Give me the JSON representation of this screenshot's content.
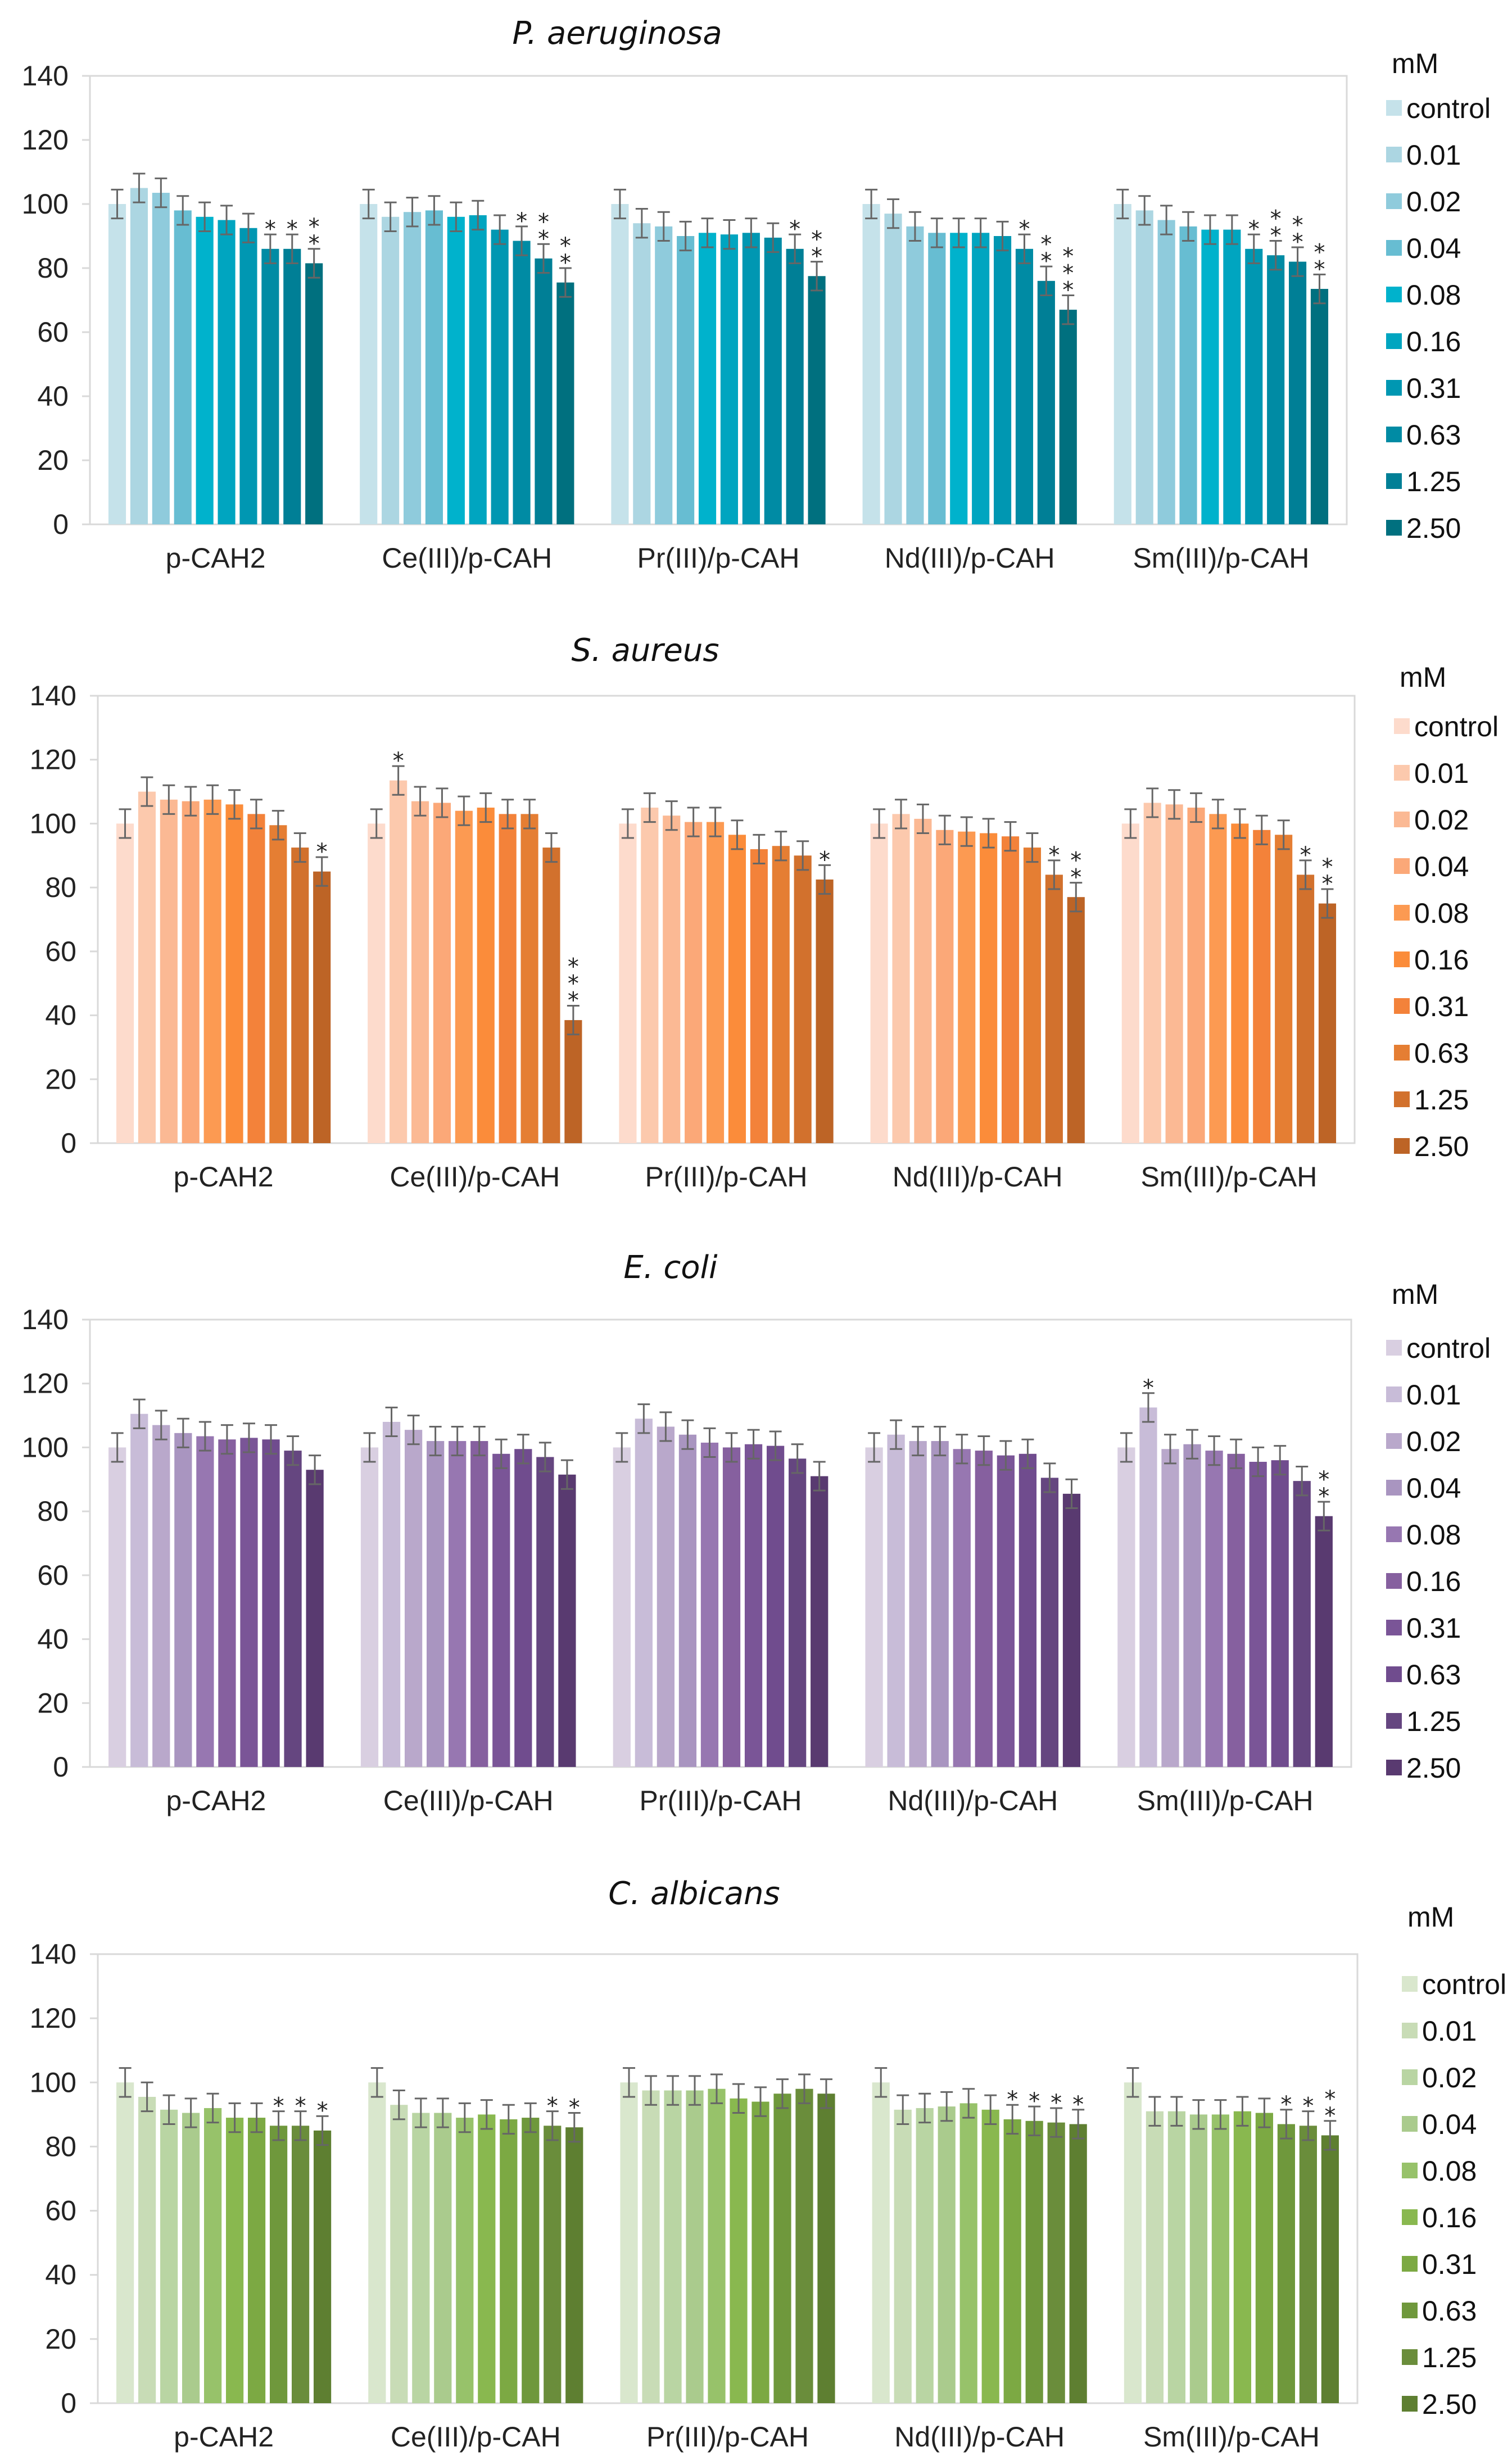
{
  "chart_data": [
    {
      "type": "bar",
      "title": "P. aeruginosa",
      "legend_title": "mM",
      "legend_position": "right",
      "ylim": [
        0,
        140
      ],
      "yticks": [
        0,
        20,
        40,
        60,
        80,
        100,
        120,
        140
      ],
      "ytick_labels": [
        "0",
        "20",
        "40",
        "60",
        "80",
        "100",
        "120",
        "140"
      ],
      "categories": [
        "p-CAH2",
        "Ce(III)/p-CAH",
        "Pr(III)/p-CAH",
        "Nd(III)/p-CAH",
        "Sm(III)/p-CAH"
      ],
      "series": [
        "control",
        "0.01",
        "0.02",
        "0.04",
        "0.08",
        "0.16",
        "0.31",
        "0.63",
        "1.25",
        "2.50"
      ],
      "colors": [
        "#c5e2ea",
        "#acd6e2",
        "#8fcbdc",
        "#67bdd2",
        "#00b2cc",
        "#00a5c0",
        "#0097b2",
        "#008ba4",
        "#007f96",
        "#00707f"
      ],
      "values": [
        [
          100,
          105,
          103.5,
          98,
          96,
          95,
          92.5,
          86,
          86,
          81.5
        ],
        [
          100,
          96,
          97.5,
          98,
          96,
          96.5,
          92,
          88.5,
          83,
          75.5
        ],
        [
          100,
          94,
          93,
          90,
          91,
          90.5,
          91,
          89.5,
          86,
          77.5
        ],
        [
          100,
          97,
          93,
          91,
          91,
          91,
          90,
          86,
          76,
          67
        ],
        [
          100,
          98,
          95,
          93,
          92,
          92,
          86,
          84,
          82,
          73.5
        ]
      ],
      "error": 4.5,
      "significance": [
        [
          "",
          "",
          "",
          "",
          "",
          "",
          "",
          "*",
          "*",
          "**"
        ],
        [
          "",
          "",
          "",
          "",
          "",
          "",
          "",
          "*",
          "**",
          "**"
        ],
        [
          "",
          "",
          "",
          "",
          "",
          "",
          "",
          "",
          "*",
          "**"
        ],
        [
          "",
          "",
          "",
          "",
          "",
          "",
          "",
          "*",
          "**",
          "***"
        ],
        [
          "",
          "",
          "",
          "",
          "",
          "",
          "*",
          "**",
          "**",
          "**"
        ]
      ]
    },
    {
      "type": "bar",
      "title": "S. aureus",
      "legend_title": "mM",
      "legend_position": "right",
      "ylim": [
        0,
        140
      ],
      "yticks": [
        0,
        20,
        40,
        60,
        80,
        100,
        120,
        140
      ],
      "ytick_labels": [
        "0",
        "20",
        "40",
        "60",
        "80",
        "100",
        "120",
        "140"
      ],
      "categories": [
        "p-CAH2",
        "Ce(III)/p-CAH",
        "Pr(III)/p-CAH",
        "Nd(III)/p-CAH",
        "Sm(III)/p-CAH"
      ],
      "series": [
        "control",
        "0.01",
        "0.02",
        "0.04",
        "0.08",
        "0.16",
        "0.31",
        "0.63",
        "1.25",
        "2.50"
      ],
      "colors": [
        "#fddbcc",
        "#fcc9ad",
        "#fbb994",
        "#fba878",
        "#fc9a52",
        "#fb8c3a",
        "#f3823a",
        "#e57e33",
        "#d2712d",
        "#bd6426"
      ],
      "values": [
        [
          100,
          110,
          107.5,
          107,
          107.5,
          106,
          103,
          99.5,
          92.5,
          85
        ],
        [
          100,
          113.5,
          107,
          106.5,
          104,
          105,
          103,
          103,
          92.5,
          38.5
        ],
        [
          100,
          105,
          102.5,
          100.5,
          100.5,
          96.5,
          92,
          93,
          90,
          82.5
        ],
        [
          100,
          103,
          101.5,
          98,
          97.5,
          97,
          96,
          92.5,
          84,
          77
        ],
        [
          100,
          106.5,
          106,
          105,
          103,
          100,
          98,
          96.5,
          84,
          75
        ]
      ],
      "error": 4.5,
      "significance": [
        [
          "",
          "",
          "",
          "",
          "",
          "",
          "",
          "",
          "",
          "*"
        ],
        [
          "",
          "*",
          "",
          "",
          "",
          "",
          "",
          "",
          "",
          "***"
        ],
        [
          "",
          "",
          "",
          "",
          "",
          "",
          "",
          "",
          "",
          "*"
        ],
        [
          "",
          "",
          "",
          "",
          "",
          "",
          "",
          "",
          "*",
          "**"
        ],
        [
          "",
          "",
          "",
          "",
          "",
          "",
          "",
          "",
          "*",
          "**"
        ]
      ]
    },
    {
      "type": "bar",
      "title": "E. coli",
      "legend_title": "mM",
      "legend_position": "right",
      "ylim": [
        0,
        140
      ],
      "yticks": [
        0,
        20,
        40,
        60,
        80,
        100,
        120,
        140
      ],
      "ytick_labels": [
        "0",
        "20",
        "40",
        "60",
        "80",
        "100",
        "120",
        "140"
      ],
      "categories": [
        "p-CAH2",
        "Ce(III)/p-CAH",
        "Pr(III)/p-CAH",
        "Nd(III)/p-CAH",
        "Sm(III)/p-CAH"
      ],
      "series": [
        "control",
        "0.01",
        "0.02",
        "0.04",
        "0.08",
        "0.16",
        "0.31",
        "0.63",
        "1.25",
        "2.50"
      ],
      "colors": [
        "#d9cfe1",
        "#c8bcd8",
        "#b9a8cb",
        "#a995c0",
        "#9777b1",
        "#86609f",
        "#7a5597",
        "#704c8e",
        "#654680",
        "#593a70"
      ],
      "values": [
        [
          100,
          110.5,
          107,
          104.5,
          103.5,
          102.5,
          103,
          102.5,
          99,
          93
        ],
        [
          100,
          108,
          105.5,
          102,
          102,
          102,
          98,
          99.5,
          97,
          91.5
        ],
        [
          100,
          109,
          106.5,
          104,
          101.5,
          100,
          101,
          100.5,
          96.5,
          91
        ],
        [
          100,
          104,
          102,
          102,
          99.5,
          99,
          97.5,
          98,
          90.5,
          85.5
        ],
        [
          100,
          112.5,
          99.5,
          101,
          99,
          98,
          95.5,
          96,
          89.5,
          78.5
        ]
      ],
      "error": 4.5,
      "significance": [
        [
          "",
          "",
          "",
          "",
          "",
          "",
          "",
          "",
          "",
          ""
        ],
        [
          "",
          "",
          "",
          "",
          "",
          "",
          "",
          "",
          "",
          ""
        ],
        [
          "",
          "",
          "",
          "",
          "",
          "",
          "",
          "",
          "",
          ""
        ],
        [
          "",
          "",
          "",
          "",
          "",
          "",
          "",
          "",
          "",
          ""
        ],
        [
          "",
          "*",
          "",
          "",
          "",
          "",
          "",
          "",
          "",
          "**"
        ]
      ]
    },
    {
      "type": "bar",
      "title": "C. albicans",
      "legend_title": "mM",
      "legend_position": "right",
      "ylim": [
        0,
        140
      ],
      "yticks": [
        0,
        20,
        40,
        60,
        80,
        100,
        120,
        140
      ],
      "ytick_labels": [
        "0",
        "20",
        "40",
        "60",
        "80",
        "100",
        "120",
        "140"
      ],
      "categories": [
        "p-CAH2",
        "Ce(III)/p-CAH",
        "Pr(III)/p-CAH",
        "Nd(III)/p-CAH",
        "Sm(III)/p-CAH"
      ],
      "series": [
        "control",
        "0.01",
        "0.02",
        "0.04",
        "0.08",
        "0.16",
        "0.31",
        "0.63",
        "1.25",
        "2.50"
      ],
      "colors": [
        "#d9e7cd",
        "#c8dcb6",
        "#b9d5a3",
        "#aacb8d",
        "#97c26a",
        "#89b84f",
        "#7ca943",
        "#6f983c",
        "#6a8d3b",
        "#5e7f31"
      ],
      "values": [
        [
          100,
          95.5,
          91.5,
          90.5,
          92,
          89,
          89,
          86.5,
          86.5,
          85
        ],
        [
          100,
          93,
          90.5,
          90.5,
          89,
          90,
          88.5,
          89,
          86.5,
          86
        ],
        [
          100,
          97.5,
          97.5,
          97.5,
          98,
          95,
          94,
          96.5,
          98,
          96.5
        ],
        [
          100,
          91.5,
          92,
          92.5,
          93.5,
          91.5,
          88.5,
          88,
          87.5,
          87
        ],
        [
          100,
          91,
          91,
          90,
          90,
          91,
          90.5,
          87,
          86.5,
          83.5
        ]
      ],
      "error": 4.5,
      "significance": [
        [
          "",
          "",
          "",
          "",
          "",
          "",
          "",
          "*",
          "*",
          "*"
        ],
        [
          "",
          "",
          "",
          "",
          "",
          "",
          "",
          "",
          "*",
          "*"
        ],
        [
          "",
          "",
          "",
          "",
          "",
          "",
          "",
          "",
          "",
          ""
        ],
        [
          "",
          "",
          "",
          "",
          "",
          "",
          "*",
          "*",
          "*",
          "*"
        ],
        [
          "",
          "",
          "",
          "",
          "",
          "",
          "",
          "*",
          "*",
          "**"
        ]
      ]
    }
  ]
}
